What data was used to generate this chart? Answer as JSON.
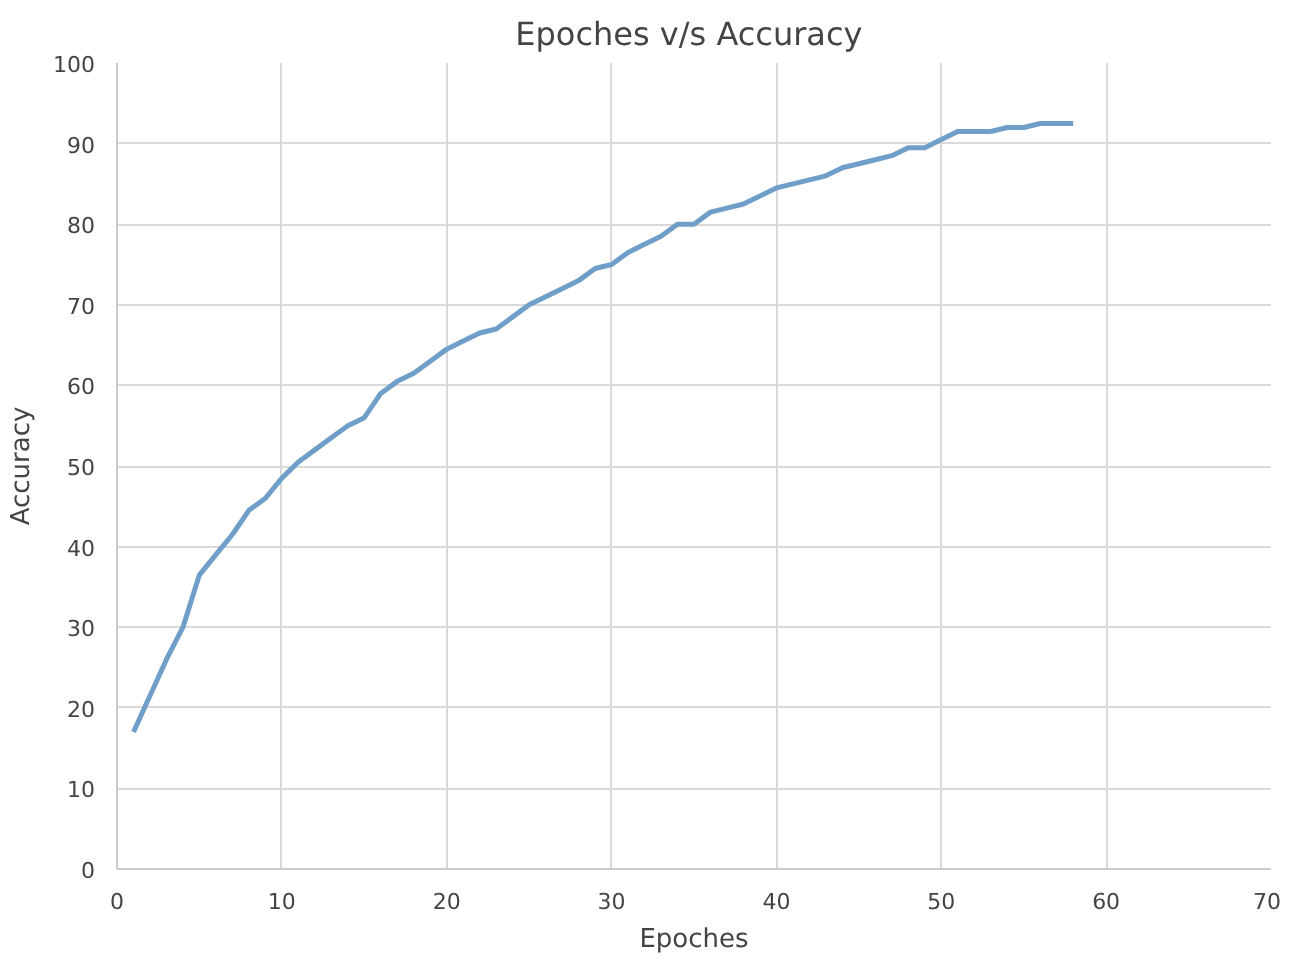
{
  "chart_data": {
    "type": "line",
    "title": "Epoches  v/s Accuracy",
    "xlabel": "Epoches",
    "ylabel": "Accuracy",
    "x": [
      1,
      2,
      3,
      4,
      5,
      6,
      7,
      8,
      9,
      10,
      11,
      12,
      13,
      14,
      15,
      16,
      17,
      18,
      19,
      20,
      21,
      22,
      23,
      24,
      25,
      26,
      27,
      28,
      29,
      30,
      31,
      32,
      33,
      34,
      35,
      36,
      37,
      38,
      39,
      40,
      41,
      42,
      43,
      44,
      45,
      46,
      47,
      48,
      49,
      50,
      51,
      52,
      53,
      54,
      55,
      56,
      57,
      58
    ],
    "series": [
      {
        "color": "#6f9fc8",
        "values": [
          17,
          21.5,
          26,
          30,
          36.5,
          39,
          41.5,
          44.5,
          46,
          48.5,
          50.5,
          52,
          53.5,
          55,
          56,
          59,
          60.5,
          61.5,
          63,
          64.5,
          65.5,
          66.5,
          67,
          68.5,
          70,
          71,
          72,
          73,
          74.5,
          75,
          76.5,
          77.5,
          78.5,
          80,
          80,
          81.5,
          82,
          82.5,
          83.5,
          84.5,
          85,
          85.5,
          86,
          87,
          87.5,
          88,
          88.5,
          89.5,
          89.5,
          90.5,
          91.5,
          91.5,
          91.5,
          92,
          92,
          92.5,
          92.5,
          92.5
        ]
      }
    ],
    "xlim": [
      0,
      70
    ],
    "xticks": [
      0,
      10,
      20,
      30,
      40,
      50,
      60,
      70
    ],
    "ylim": [
      0,
      100
    ],
    "yticks": [
      0,
      10,
      20,
      30,
      40,
      50,
      60,
      70,
      80,
      90,
      100
    ],
    "grid": true,
    "marker": "none",
    "line_style": "solid"
  }
}
